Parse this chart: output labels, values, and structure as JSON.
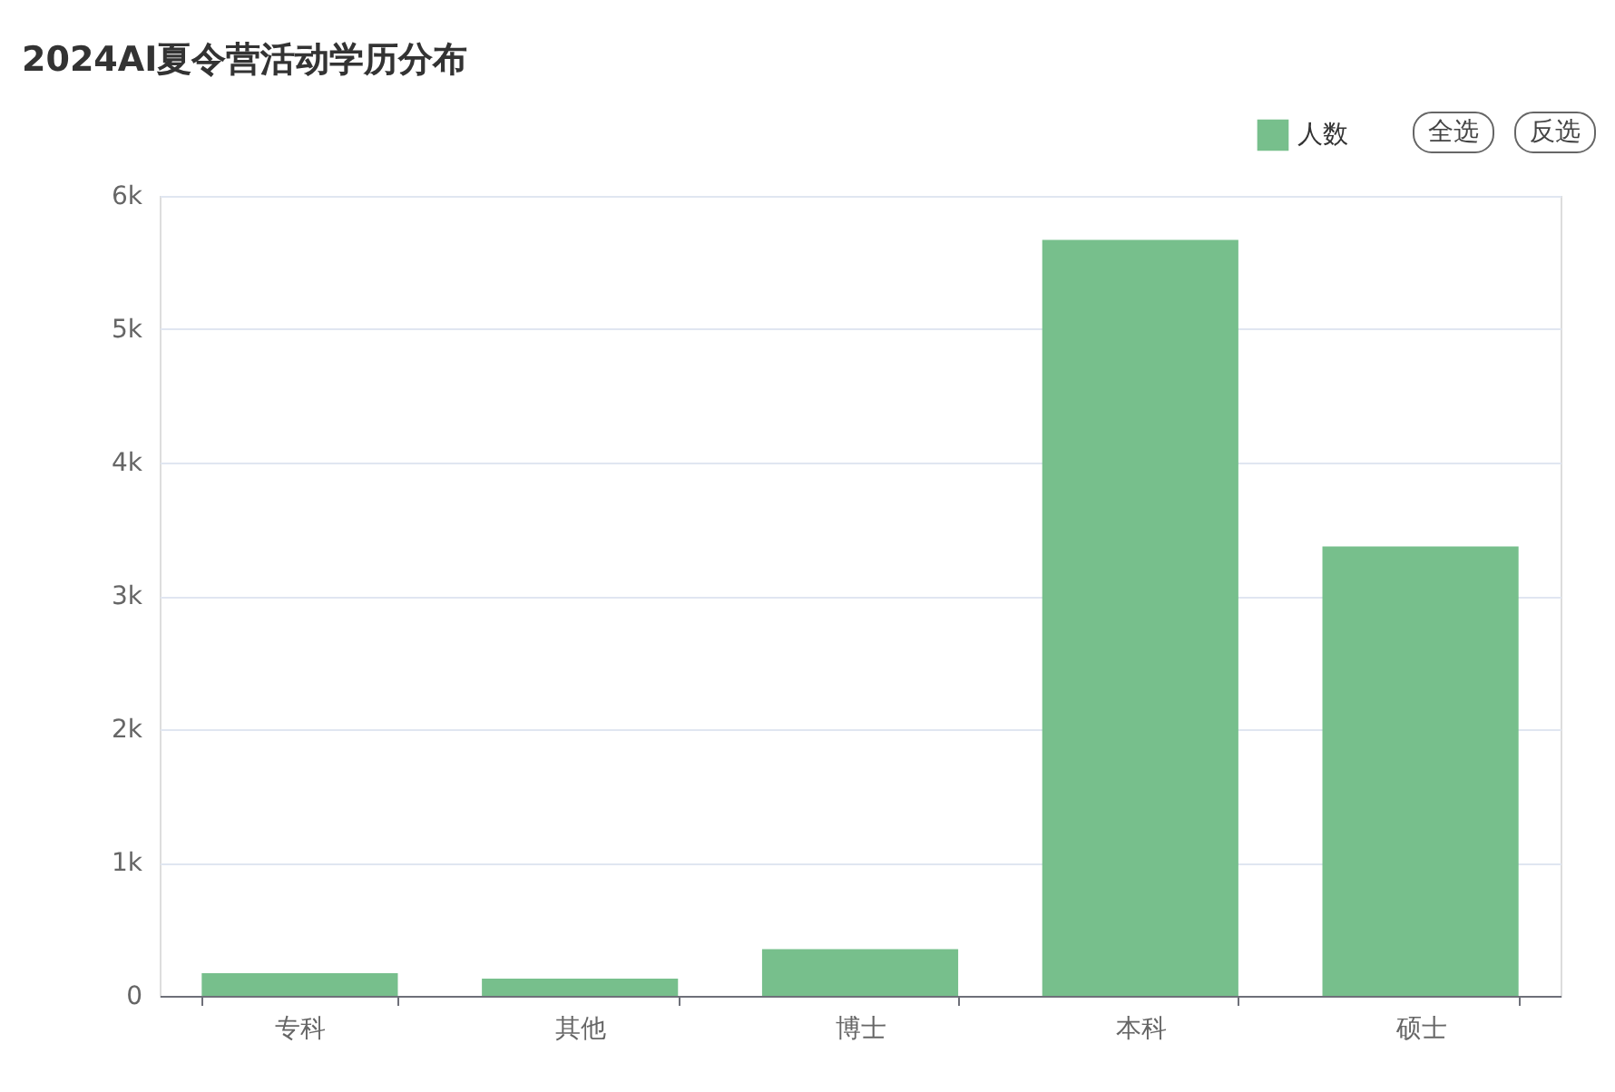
{
  "chart_data": {
    "type": "bar",
    "title": "2024AI夏令营活动学历分布",
    "categories": [
      "专科",
      "其他",
      "博士",
      "本科",
      "硕士"
    ],
    "series": [
      {
        "name": "人数",
        "color": "#77bf8c",
        "values": [
          170,
          130,
          350,
          5670,
          3370
        ]
      }
    ],
    "ylim": [
      0,
      6000
    ],
    "yticks": [
      0,
      {
        "value": 1000,
        "label": "1k"
      },
      {
        "value": 2000,
        "label": "2k"
      },
      {
        "value": 3000,
        "label": "3k"
      },
      {
        "value": 4000,
        "label": "4k"
      },
      {
        "value": 5000,
        "label": "5k"
      },
      {
        "value": 6000,
        "label": "6k"
      }
    ],
    "grid": "y",
    "legend": "top right",
    "annotations": [
      "全选",
      "反选"
    ]
  }
}
